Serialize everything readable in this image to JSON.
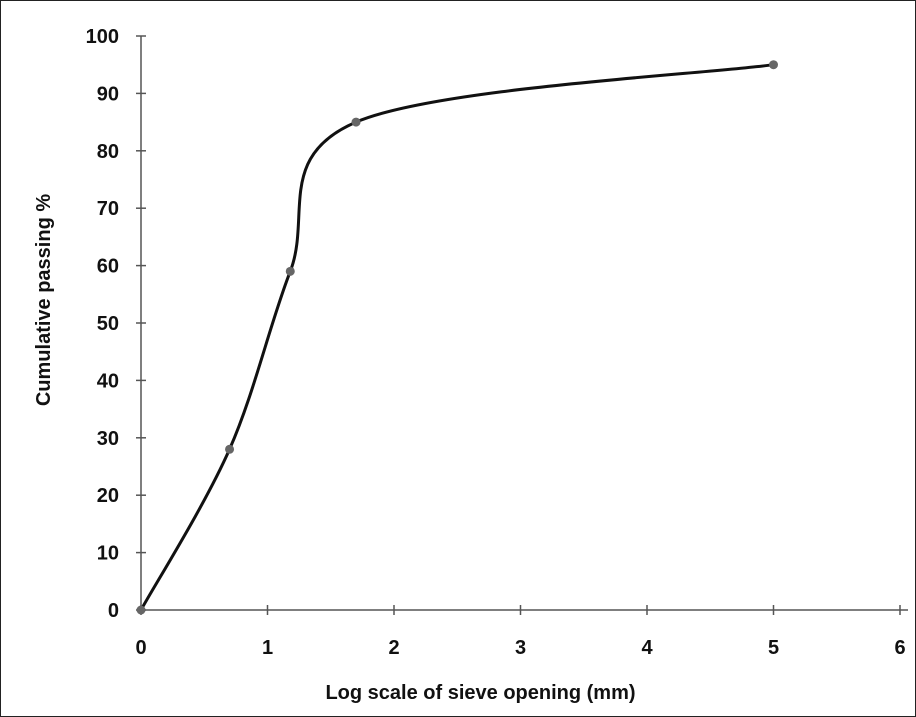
{
  "chart_data": {
    "type": "line",
    "xlabel": "Log scale of sieve opening (mm)",
    "ylabel": "Cumulative passing %",
    "xlim": [
      0,
      6
    ],
    "ylim": [
      0,
      100
    ],
    "xticks": [
      0,
      1,
      2,
      3,
      4,
      5,
      6
    ],
    "yticks": [
      0,
      10,
      20,
      30,
      40,
      50,
      60,
      70,
      80,
      90,
      100
    ],
    "grid": false,
    "legend": "none",
    "line_color": "#111111",
    "marker_color": "#666666",
    "series": [
      {
        "x": [
          0,
          0.7,
          1.18,
          1.7,
          5
        ],
        "y": [
          0,
          28,
          59,
          85,
          95
        ]
      }
    ]
  }
}
